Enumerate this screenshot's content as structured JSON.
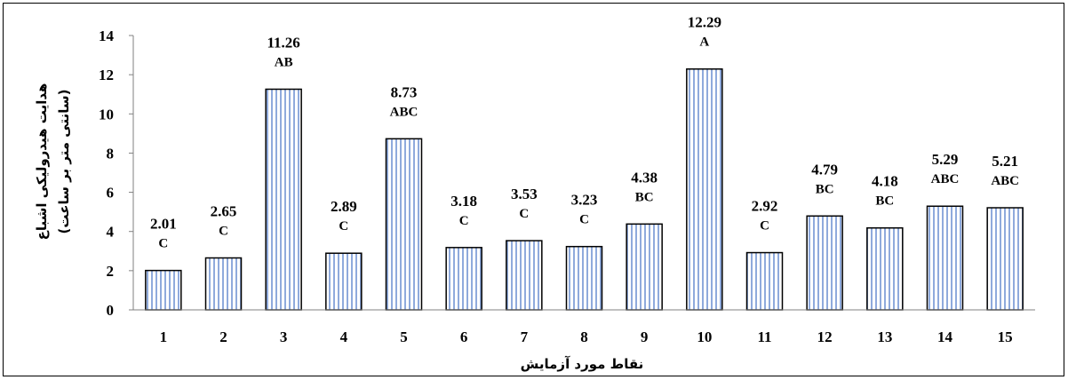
{
  "chart_data": {
    "type": "bar",
    "categories": [
      "1",
      "2",
      "3",
      "4",
      "5",
      "6",
      "7",
      "8",
      "9",
      "10",
      "11",
      "12",
      "13",
      "14",
      "15"
    ],
    "values": [
      2.01,
      2.65,
      11.26,
      2.89,
      8.73,
      3.18,
      3.53,
      3.23,
      4.38,
      12.29,
      2.92,
      4.79,
      4.18,
      5.29,
      5.21
    ],
    "value_labels": [
      "2.01",
      "2.65",
      "11.26",
      "2.89",
      "8.73",
      "3.18",
      "3.53",
      "3.23",
      "4.38",
      "12.29",
      "2.92",
      "4.79",
      "4.18",
      "5.29",
      "5.21"
    ],
    "group_labels": [
      "C",
      "C",
      "AB",
      "C",
      "ABC",
      "C",
      "C",
      "C",
      "BC",
      "A",
      "C",
      "BC",
      "BC",
      "ABC",
      "ABC"
    ],
    "y_ticks": [
      "0",
      "2",
      "4",
      "6",
      "8",
      "10",
      "12",
      "14"
    ],
    "ylim": [
      0,
      14
    ],
    "xlabel": "نقاط مورد آزمایش",
    "ylabel": "هدایت هیدرولیکی اشباع",
    "ylabel_unit": "(سانتی متر بر ساعت)",
    "grid": false,
    "legend": "none",
    "colors": {
      "bar_fill": "#ffffff",
      "bar_stripe": "#8faadc",
      "bar_border": "#000000",
      "axis": "#808080"
    }
  }
}
